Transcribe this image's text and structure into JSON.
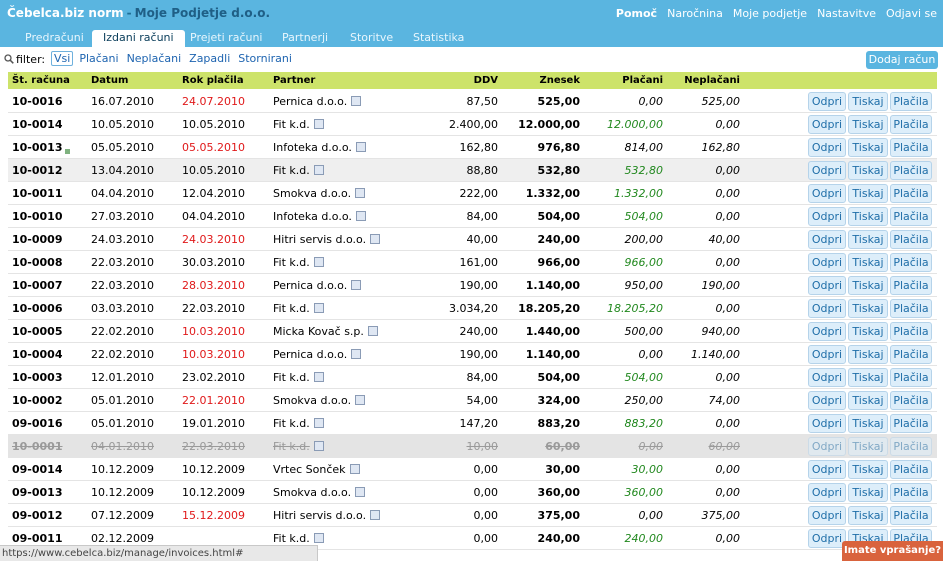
{
  "brand": {
    "product": "Čebelca.biz norm",
    "separator": "-",
    "company": "Moje Podjetje d.o.o."
  },
  "topnav": [
    "Pomoč",
    "Naročnina",
    "Moje podjetje",
    "Nastavitve",
    "Odjavi se"
  ],
  "tabs": [
    "Predračuni",
    "Izdani računi",
    "Prejeti računi",
    "Partnerji",
    "Storitve",
    "Statistika"
  ],
  "active_tab": "Izdani računi",
  "filter": {
    "label": "filter:",
    "options": [
      "Vsi",
      "Plačani",
      "Neplačani",
      "Zapadli",
      "Stornirani"
    ],
    "active": "Vsi"
  },
  "add_button": "Dodaj račun",
  "columns": {
    "number": "Št. računa",
    "date": "Datum",
    "due": "Rok plačila",
    "partner": "Partner",
    "vat": "DDV",
    "amount": "Znesek",
    "paid": "Plačani",
    "unpaid": "Neplačani"
  },
  "row_buttons": {
    "open": "Odpri",
    "print": "Tiskaj",
    "pay": "Plačila"
  },
  "invoices": [
    {
      "number": "10-0016",
      "date": "16.07.2010",
      "due": "24.07.2010",
      "due_red": true,
      "partner": "Pernica d.o.o.",
      "vat": "87,50",
      "amount": "525,00",
      "paid": "0,00",
      "paid_green": false,
      "unpaid": "525,00"
    },
    {
      "number": "10-0014",
      "date": "10.05.2010",
      "due": "10.05.2010",
      "due_red": false,
      "partner": "Fit k.d.",
      "vat": "2.400,00",
      "amount": "12.000,00",
      "paid": "12.000,00",
      "paid_green": true,
      "unpaid": "0,00"
    },
    {
      "number": "10-0013",
      "date": "05.05.2010",
      "due": "05.05.2010",
      "due_red": true,
      "partner": "Infoteka d.o.o.",
      "vat": "162,80",
      "amount": "976,80",
      "paid": "814,00",
      "paid_green": false,
      "unpaid": "162,80",
      "note": true
    },
    {
      "number": "10-0012",
      "date": "13.04.2010",
      "due": "10.05.2010",
      "due_red": false,
      "partner": "Fit k.d.",
      "vat": "88,80",
      "amount": "532,80",
      "paid": "532,80",
      "paid_green": true,
      "unpaid": "0,00",
      "highlight": true
    },
    {
      "number": "10-0011",
      "date": "04.04.2010",
      "due": "12.04.2010",
      "due_red": false,
      "partner": "Smokva d.o.o.",
      "vat": "222,00",
      "amount": "1.332,00",
      "paid": "1.332,00",
      "paid_green": true,
      "unpaid": "0,00"
    },
    {
      "number": "10-0010",
      "date": "27.03.2010",
      "due": "04.04.2010",
      "due_red": false,
      "partner": "Infoteka d.o.o.",
      "vat": "84,00",
      "amount": "504,00",
      "paid": "504,00",
      "paid_green": true,
      "unpaid": "0,00"
    },
    {
      "number": "10-0009",
      "date": "24.03.2010",
      "due": "24.03.2010",
      "due_red": true,
      "partner": "Hitri servis d.o.o.",
      "vat": "40,00",
      "amount": "240,00",
      "paid": "200,00",
      "paid_green": false,
      "unpaid": "40,00"
    },
    {
      "number": "10-0008",
      "date": "22.03.2010",
      "due": "30.03.2010",
      "due_red": false,
      "partner": "Fit k.d.",
      "vat": "161,00",
      "amount": "966,00",
      "paid": "966,00",
      "paid_green": true,
      "unpaid": "0,00"
    },
    {
      "number": "10-0007",
      "date": "22.03.2010",
      "due": "28.03.2010",
      "due_red": true,
      "partner": "Pernica d.o.o.",
      "vat": "190,00",
      "amount": "1.140,00",
      "paid": "950,00",
      "paid_green": false,
      "unpaid": "190,00"
    },
    {
      "number": "10-0006",
      "date": "03.03.2010",
      "due": "22.03.2010",
      "due_red": false,
      "partner": "Fit k.d.",
      "vat": "3.034,20",
      "amount": "18.205,20",
      "paid": "18.205,20",
      "paid_green": true,
      "unpaid": "0,00"
    },
    {
      "number": "10-0005",
      "date": "22.02.2010",
      "due": "10.03.2010",
      "due_red": true,
      "partner": "Micka Kovač s.p.",
      "vat": "240,00",
      "amount": "1.440,00",
      "paid": "500,00",
      "paid_green": false,
      "unpaid": "940,00"
    },
    {
      "number": "10-0004",
      "date": "22.02.2010",
      "due": "10.03.2010",
      "due_red": true,
      "partner": "Pernica d.o.o.",
      "vat": "190,00",
      "amount": "1.140,00",
      "paid": "0,00",
      "paid_green": false,
      "unpaid": "1.140,00"
    },
    {
      "number": "10-0003",
      "date": "12.01.2010",
      "due": "23.02.2010",
      "due_red": false,
      "partner": "Fit k.d.",
      "vat": "84,00",
      "amount": "504,00",
      "paid": "504,00",
      "paid_green": true,
      "unpaid": "0,00"
    },
    {
      "number": "10-0002",
      "date": "05.01.2010",
      "due": "22.01.2010",
      "due_red": true,
      "partner": "Smokva d.o.o.",
      "vat": "54,00",
      "amount": "324,00",
      "paid": "250,00",
      "paid_green": false,
      "unpaid": "74,00"
    },
    {
      "number": "09-0016",
      "date": "05.01.2010",
      "due": "19.01.2010",
      "due_red": false,
      "partner": "Fit k.d.",
      "vat": "147,20",
      "amount": "883,20",
      "paid": "883,20",
      "paid_green": true,
      "unpaid": "0,00"
    },
    {
      "number": "10-0001",
      "date": "04.01.2010",
      "due": "22.03.2010",
      "due_red": false,
      "partner": "Fit k.d.",
      "vat": "10,00",
      "amount": "60,00",
      "paid": "0,00",
      "paid_green": false,
      "unpaid": "60,00",
      "storno": true
    },
    {
      "number": "09-0014",
      "date": "10.12.2009",
      "due": "10.12.2009",
      "due_red": false,
      "partner": "Vrtec Sonček",
      "vat": "0,00",
      "amount": "30,00",
      "paid": "30,00",
      "paid_green": true,
      "unpaid": "0,00"
    },
    {
      "number": "09-0013",
      "date": "10.12.2009",
      "due": "10.12.2009",
      "due_red": false,
      "partner": "Smokva d.o.o.",
      "vat": "0,00",
      "amount": "360,00",
      "paid": "360,00",
      "paid_green": true,
      "unpaid": "0,00"
    },
    {
      "number": "09-0012",
      "date": "07.12.2009",
      "due": "15.12.2009",
      "due_red": true,
      "partner": "Hitri servis d.o.o.",
      "vat": "0,00",
      "amount": "375,00",
      "paid": "0,00",
      "paid_green": false,
      "unpaid": "375,00"
    },
    {
      "number": "09-0011",
      "date": "02.12.2009",
      "due": "",
      "due_red": false,
      "partner": "Fit k.d.",
      "vat": "0,00",
      "amount": "240,00",
      "paid": "240,00",
      "paid_green": true,
      "unpaid": "0,00"
    }
  ],
  "statusbar": "https://www.cebelca.biz/manage/invoices.html#",
  "help_button": "Imate vprašanje?"
}
